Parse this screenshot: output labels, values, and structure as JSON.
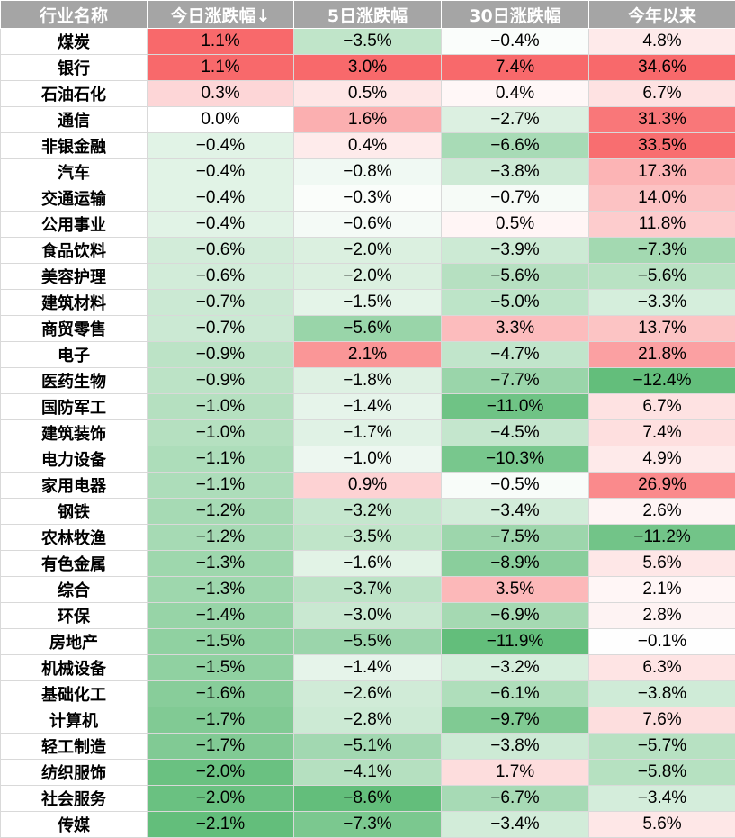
{
  "colors": {
    "header_bg": "#a5a5a5",
    "header_text": "#ffffff",
    "positive": "#f8696b",
    "negative": "#63be7b",
    "neutral": "#ffffff"
  },
  "chart_data": {
    "type": "table",
    "columns": [
      "行业名称",
      "今日涨跌幅↓",
      "5日涨跌幅",
      "30日涨跌幅",
      "今年以来"
    ],
    "rows": [
      {
        "name": "煤炭",
        "values": [
          1.1,
          -3.5,
          -0.4,
          4.8
        ]
      },
      {
        "name": "银行",
        "values": [
          1.1,
          3.0,
          7.4,
          34.6
        ]
      },
      {
        "name": "石油石化",
        "values": [
          0.3,
          0.5,
          0.4,
          6.7
        ]
      },
      {
        "name": "通信",
        "values": [
          0.0,
          1.6,
          -2.7,
          31.3
        ]
      },
      {
        "name": "非银金融",
        "values": [
          -0.4,
          0.4,
          -6.6,
          33.5
        ]
      },
      {
        "name": "汽车",
        "values": [
          -0.4,
          -0.8,
          -3.8,
          17.3
        ]
      },
      {
        "name": "交通运输",
        "values": [
          -0.4,
          -0.3,
          -0.7,
          14.0
        ]
      },
      {
        "name": "公用事业",
        "values": [
          -0.4,
          -0.6,
          0.5,
          11.8
        ]
      },
      {
        "name": "食品饮料",
        "values": [
          -0.6,
          -2.0,
          -3.9,
          -7.3
        ]
      },
      {
        "name": "美容护理",
        "values": [
          -0.6,
          -2.0,
          -5.6,
          -5.6
        ]
      },
      {
        "name": "建筑材料",
        "values": [
          -0.7,
          -1.5,
          -5.0,
          -3.3
        ]
      },
      {
        "name": "商贸零售",
        "values": [
          -0.7,
          -5.6,
          3.3,
          13.7
        ]
      },
      {
        "name": "电子",
        "values": [
          -0.9,
          2.1,
          -4.7,
          21.8
        ]
      },
      {
        "name": "医药生物",
        "values": [
          -0.9,
          -1.8,
          -7.7,
          -12.4
        ]
      },
      {
        "name": "国防军工",
        "values": [
          -1.0,
          -1.4,
          -11.0,
          6.7
        ]
      },
      {
        "name": "建筑装饰",
        "values": [
          -1.0,
          -1.7,
          -4.5,
          7.4
        ]
      },
      {
        "name": "电力设备",
        "values": [
          -1.1,
          -1.0,
          -10.3,
          4.9
        ]
      },
      {
        "name": "家用电器",
        "values": [
          -1.1,
          0.9,
          -0.5,
          26.9
        ]
      },
      {
        "name": "钢铁",
        "values": [
          -1.2,
          -3.2,
          -3.4,
          2.6
        ]
      },
      {
        "name": "农林牧渔",
        "values": [
          -1.2,
          -3.5,
          -7.5,
          -11.2
        ]
      },
      {
        "name": "有色金属",
        "values": [
          -1.3,
          -1.6,
          -8.9,
          5.6
        ]
      },
      {
        "name": "综合",
        "values": [
          -1.3,
          -3.7,
          3.5,
          2.1
        ]
      },
      {
        "name": "环保",
        "values": [
          -1.4,
          -3.0,
          -6.9,
          2.8
        ]
      },
      {
        "name": "房地产",
        "values": [
          -1.5,
          -5.5,
          -11.9,
          -0.1
        ]
      },
      {
        "name": "机械设备",
        "values": [
          -1.5,
          -1.4,
          -3.2,
          6.3
        ]
      },
      {
        "name": "基础化工",
        "values": [
          -1.6,
          -2.6,
          -6.1,
          -3.8
        ]
      },
      {
        "name": "计算机",
        "values": [
          -1.7,
          -2.8,
          -9.7,
          7.6
        ]
      },
      {
        "name": "轻工制造",
        "values": [
          -1.7,
          -5.1,
          -3.8,
          -5.7
        ]
      },
      {
        "name": "纺织服饰",
        "values": [
          -2.0,
          -4.1,
          1.7,
          -5.8
        ]
      },
      {
        "name": "社会服务",
        "values": [
          -2.0,
          -8.6,
          -6.7,
          -3.4
        ]
      },
      {
        "name": "传媒",
        "values": [
          -2.1,
          -7.3,
          -3.4,
          5.6
        ]
      }
    ]
  }
}
